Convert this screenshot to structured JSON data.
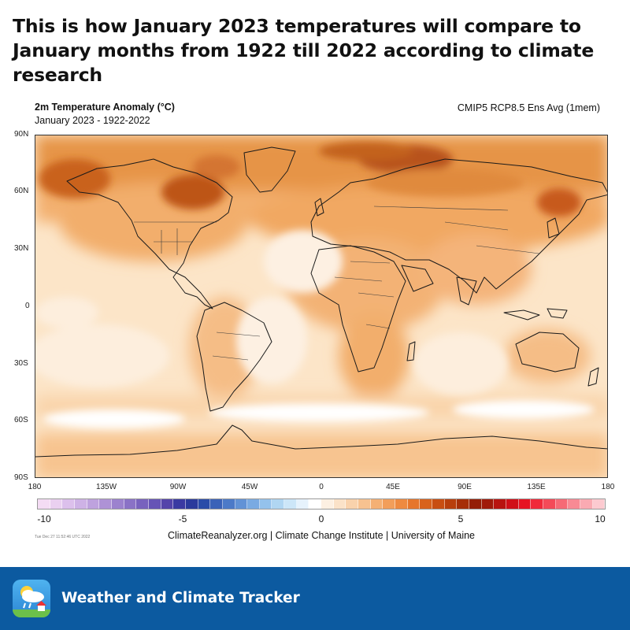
{
  "headline": "This is how January 2023 temperatures will compare to January months from 1922 till 2022 according to climate research",
  "map": {
    "title": "2m Temperature Anomaly (°C)",
    "subtitle": "January 2023 - 1922-2022",
    "model": "CMIP5 RCP8.5 Ens Avg (1mem)",
    "lat_labels": [
      "90N",
      "60N",
      "30N",
      "0",
      "30S",
      "60S",
      "90S"
    ],
    "lon_labels": [
      "180",
      "135W",
      "90W",
      "45W",
      "0",
      "45E",
      "90E",
      "135E",
      "180"
    ]
  },
  "colorbar": {
    "ticks": [
      "-10",
      "-5",
      "0",
      "5",
      "10"
    ],
    "colors": [
      "#f4dcf4",
      "#ead0f0",
      "#dcc0ec",
      "#ceb2e6",
      "#bea2de",
      "#ae92d6",
      "#9c82ce",
      "#8a72c6",
      "#7862be",
      "#6654b6",
      "#5444aa",
      "#3a3aa2",
      "#2a3a9c",
      "#2a4ca8",
      "#3a62b8",
      "#4c7ac8",
      "#6292d6",
      "#7aaae2",
      "#94c2ec",
      "#b0d6f2",
      "#cce6f8",
      "#e6f2fc",
      "#ffffff",
      "#fdf0e2",
      "#fbe2c8",
      "#f9d2ac",
      "#f7c290",
      "#f4b074",
      "#f29e5a",
      "#ee8a40",
      "#e6762c",
      "#d8621c",
      "#c84e12",
      "#b83e0c",
      "#a62e08",
      "#941e06",
      "#a01a0a",
      "#b81410",
      "#d01018",
      "#e61422",
      "#f02a3a",
      "#f44a58",
      "#f66a76",
      "#f88a94",
      "#faaab2",
      "#fccad0"
    ]
  },
  "credit": "ClimateReanalyzer.org | Climate Change Institute | University of Maine",
  "timestamp": "Tue Dec 27 11:52:46 UTC 2022",
  "footer": {
    "app_name": "Weather and Climate Tracker"
  }
}
